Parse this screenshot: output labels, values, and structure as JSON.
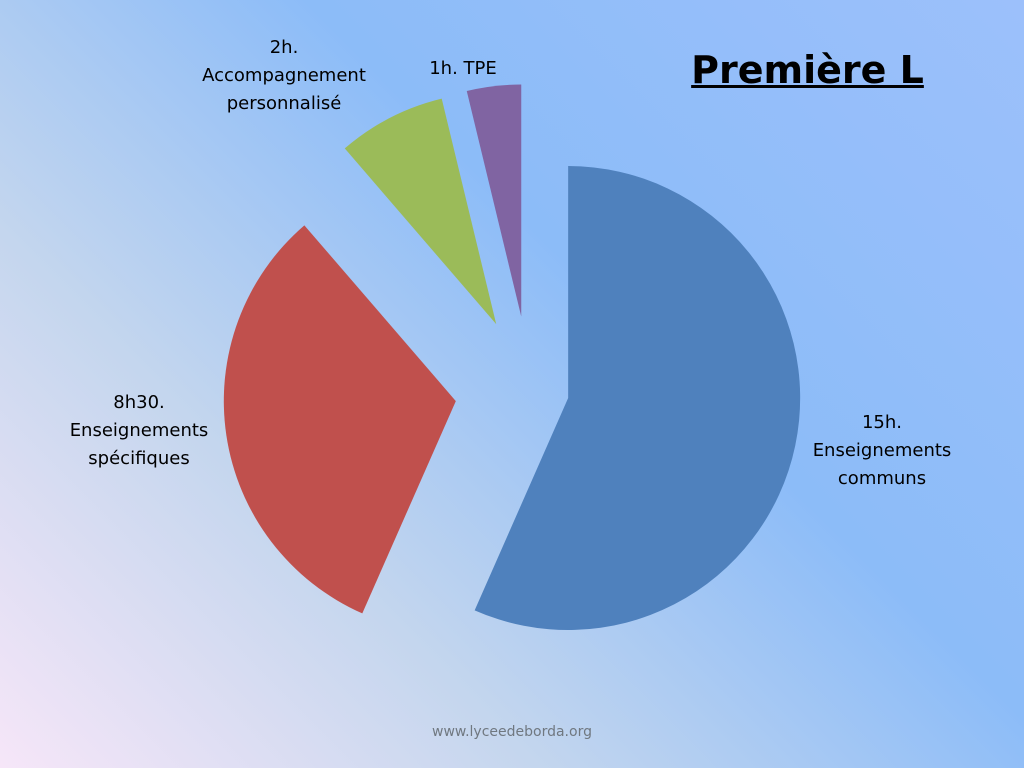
{
  "chart_data": {
    "type": "pie",
    "title": "Première L",
    "categories": [
      "Enseignements communs",
      "Enseignements spécifiques",
      "Accompagnement personnalisé",
      "TPE"
    ],
    "values": [
      15,
      8.5,
      2,
      1
    ],
    "value_labels": [
      "15h.",
      "8h30.",
      "2h.",
      "1h."
    ],
    "colors": [
      "#4f81bd",
      "#c0504d",
      "#9bbb59",
      "#8064a2"
    ]
  },
  "footer": "www.lyceedeborda.org"
}
